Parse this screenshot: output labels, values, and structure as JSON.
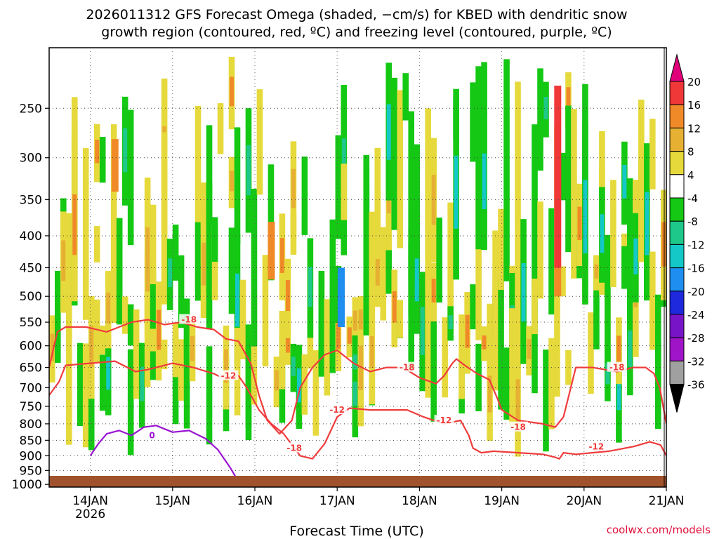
{
  "chart_data": {
    "type": "heatmap",
    "title_lines": [
      "2026011312 GFS Forecast Omega (shaded, −cm/s) for KBED with dendritic snow",
      "growth region (contoured, red, ºC) and freezing level (contoured, purple, ºC)"
    ],
    "xlabel": "Forecast Time (UTC)",
    "ylabel": "",
    "credit": "coolwx.com/models",
    "x_ticks": [
      {
        "day": 14,
        "label": "14JAN",
        "sublabel": "2026"
      },
      {
        "day": 15,
        "label": "15JAN"
      },
      {
        "day": 16,
        "label": "16JAN"
      },
      {
        "day": 17,
        "label": "17JAN"
      },
      {
        "day": 18,
        "label": "18JAN"
      },
      {
        "day": 19,
        "label": "19JAN"
      },
      {
        "day": 20,
        "label": "20JAN"
      },
      {
        "day": 21,
        "label": "21JAN"
      }
    ],
    "xlim": [
      13.5,
      21.0
    ],
    "y_ticks": [
      250,
      300,
      350,
      400,
      450,
      500,
      550,
      600,
      650,
      700,
      750,
      800,
      850,
      900,
      950,
      1000
    ],
    "ylim": [
      200,
      1010
    ],
    "y_scale": "log-pressure",
    "colorbar": {
      "levels": [
        20,
        16,
        12,
        8,
        4,
        -4,
        -8,
        -12,
        -16,
        -20,
        -24,
        -28,
        -32,
        -36
      ],
      "colors": [
        "#e0007a",
        "#f03838",
        "#f08a28",
        "#e6b032",
        "#e6d93c",
        "#ffffff",
        "#14c814",
        "#1ec88a",
        "#14c8c8",
        "#1e8ff0",
        "#1e28dc",
        "#7814c8",
        "#a014c8",
        "#a0a0a0",
        "#000000"
      ]
    },
    "ground_color": "#a0522d",
    "series": [
      {
        "name": "dendritic growth -12C",
        "label": "-12",
        "color": "#f03c3c",
        "x": [
          13.5,
          13.62,
          13.7,
          14.0,
          14.3,
          14.55,
          14.7,
          15.0,
          15.25,
          15.5,
          15.6,
          15.8,
          15.9,
          16.05,
          16.2,
          16.35,
          16.55,
          16.7,
          16.85,
          17.0,
          17.15,
          17.4,
          17.7,
          17.85,
          18.05,
          18.3,
          18.5,
          18.6,
          18.65,
          18.75,
          18.9,
          19.2,
          19.5,
          19.65,
          19.7,
          19.75,
          19.9,
          20.1,
          20.3,
          20.6,
          20.8,
          20.93,
          21.0
        ],
        "y": [
          720,
          685,
          645,
          640,
          635,
          660,
          655,
          640,
          650,
          665,
          675,
          670,
          700,
          760,
          800,
          830,
          900,
          910,
          860,
          780,
          755,
          760,
          760,
          760,
          780,
          800,
          790,
          835,
          875,
          890,
          885,
          890,
          895,
          905,
          910,
          890,
          895,
          890,
          885,
          870,
          855,
          865,
          900
        ]
      },
      {
        "name": "dendritic growth -18C",
        "label": "-18",
        "color": "#f03c3c",
        "x": [
          13.5,
          13.6,
          13.7,
          13.95,
          14.2,
          14.5,
          14.7,
          14.9,
          15.1,
          15.3,
          15.5,
          15.65,
          15.8,
          15.95,
          16.05,
          16.15,
          16.3,
          16.45,
          16.55,
          16.7,
          16.85,
          17.0,
          17.2,
          17.4,
          17.6,
          17.8,
          18.0,
          18.2,
          18.3,
          18.4,
          18.45,
          18.55,
          18.7,
          18.85,
          18.95,
          19.0,
          19.2,
          19.5,
          19.65,
          19.75,
          19.9,
          20.1,
          20.4,
          20.6,
          20.75,
          20.85,
          20.92,
          21.0
        ],
        "y": [
          650,
          570,
          560,
          560,
          570,
          550,
          545,
          555,
          550,
          560,
          565,
          585,
          590,
          640,
          720,
          790,
          830,
          790,
          700,
          650,
          620,
          610,
          640,
          660,
          650,
          650,
          675,
          690,
          670,
          640,
          630,
          645,
          665,
          680,
          730,
          760,
          790,
          800,
          810,
          780,
          650,
          650,
          660,
          650,
          650,
          665,
          700,
          800
        ]
      },
      {
        "name": "freezing level 0C",
        "label": "0",
        "color": "#9a14d2",
        "x": [
          14.0,
          14.1,
          14.2,
          14.35,
          14.5,
          14.65,
          14.8,
          15.0,
          15.2,
          15.4,
          15.55,
          15.7,
          15.8
        ],
        "y": [
          900,
          860,
          830,
          820,
          835,
          810,
          805,
          825,
          820,
          845,
          880,
          940,
          990
        ]
      }
    ],
    "contour_labels": [
      {
        "text": "-18",
        "day": 15.2,
        "p": 545
      },
      {
        "text": "-12",
        "day": 15.68,
        "p": 670
      },
      {
        "text": "-18",
        "day": 16.48,
        "p": 875
      },
      {
        "text": "-12",
        "day": 17.0,
        "p": 760
      },
      {
        "text": "-18",
        "day": 17.85,
        "p": 650
      },
      {
        "text": "-12",
        "day": 18.3,
        "p": 790
      },
      {
        "text": "-18",
        "day": 19.2,
        "p": 810
      },
      {
        "text": "-12",
        "day": 20.15,
        "p": 870
      },
      {
        "text": "-18",
        "day": 20.4,
        "p": 650
      },
      {
        "text": "0",
        "day": 14.75,
        "p": 835
      }
    ]
  }
}
